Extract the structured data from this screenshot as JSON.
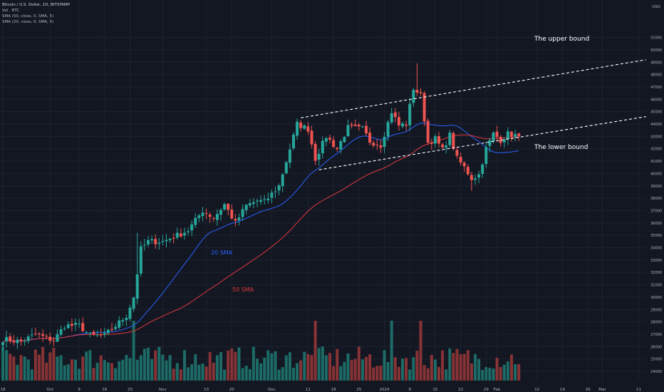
{
  "legend": {
    "title": "Bitcoin / U.S. Dollar, 1D, BITSTAMP",
    "vol": "Vol · BTC",
    "sma50": "SMA (50, close, 0, SMA, 5)",
    "sma20": "SMA (20, close, 0, SMA, 5)"
  },
  "colors": {
    "background": "#131722",
    "grid": "#1e2230",
    "up": "#26a69a",
    "down": "#ef5350",
    "volume_up": "#1f7a72",
    "volume_down": "#9c3838",
    "sma20": "#2962ff",
    "sma50": "#e0393e",
    "text": "#b2b5be",
    "annotation": "#ffffff"
  },
  "chart_data": {
    "type": "candlestick",
    "title": "Bitcoin / U.S. Dollar, 1D, BITSTAMP",
    "currency": "USD",
    "y_axis": {
      "label": "USD",
      "ticks": [
        24000,
        25000,
        26000,
        27000,
        28000,
        29000,
        30000,
        31000,
        32000,
        33000,
        34000,
        35000,
        36000,
        37000,
        38000,
        39000,
        40000,
        41000,
        42000,
        43000,
        44000,
        45000,
        46000,
        47000,
        48000,
        49000,
        50000,
        51000
      ]
    },
    "x_axis": {
      "ticks": [
        {
          "label": "18",
          "day": 0
        },
        {
          "label": "Oct",
          "day": 13
        },
        {
          "label": "9",
          "day": 21
        },
        {
          "label": "16",
          "day": 28
        },
        {
          "label": "23",
          "day": 35
        },
        {
          "label": "Nov",
          "day": 44
        },
        {
          "label": "13",
          "day": 56
        },
        {
          "label": "20",
          "day": 63
        },
        {
          "label": "Dec",
          "day": 74
        },
        {
          "label": "11",
          "day": 84
        },
        {
          "label": "18",
          "day": 91
        },
        {
          "label": "25",
          "day": 98
        },
        {
          "label": "2024",
          "day": 105
        },
        {
          "label": "8",
          "day": 112
        },
        {
          "label": "15",
          "day": 119
        },
        {
          "label": "22",
          "day": 126
        },
        {
          "label": "29",
          "day": 133
        },
        {
          "label": "Feb",
          "day": 136
        },
        {
          "label": "12",
          "day": 147
        },
        {
          "label": "19",
          "day": 154
        },
        {
          "label": "26",
          "day": 161
        },
        {
          "label": "Mar",
          "day": 165
        },
        {
          "label": "11",
          "day": 175
        }
      ]
    },
    "anchors": [
      {
        "day": 0,
        "close": 26600
      },
      {
        "day": 5,
        "close": 26400
      },
      {
        "day": 9,
        "close": 27000
      },
      {
        "day": 14,
        "close": 26500
      },
      {
        "day": 17,
        "close": 27700
      },
      {
        "day": 21,
        "close": 27700
      },
      {
        "day": 24,
        "close": 26900
      },
      {
        "day": 28,
        "close": 26900
      },
      {
        "day": 30,
        "close": 27400
      },
      {
        "day": 34,
        "close": 28500
      },
      {
        "day": 36,
        "close": 30000
      },
      {
        "day": 38,
        "close": 33900
      },
      {
        "day": 40,
        "close": 34500
      },
      {
        "day": 44,
        "close": 34500
      },
      {
        "day": 48,
        "close": 35000
      },
      {
        "day": 51,
        "close": 35400
      },
      {
        "day": 55,
        "close": 37000
      },
      {
        "day": 58,
        "close": 36400
      },
      {
        "day": 61,
        "close": 37500
      },
      {
        "day": 64,
        "close": 36000
      },
      {
        "day": 67,
        "close": 37400
      },
      {
        "day": 70,
        "close": 37800
      },
      {
        "day": 72,
        "close": 37700
      },
      {
        "day": 76,
        "close": 39000
      },
      {
        "day": 79,
        "close": 42000
      },
      {
        "day": 81,
        "close": 44000
      },
      {
        "day": 84,
        "close": 43600
      },
      {
        "day": 86,
        "close": 41200
      },
      {
        "day": 89,
        "close": 43000
      },
      {
        "day": 92,
        "close": 42000
      },
      {
        "day": 95,
        "close": 43700
      },
      {
        "day": 99,
        "close": 43600
      },
      {
        "day": 101,
        "close": 42600
      },
      {
        "day": 104,
        "close": 42300
      },
      {
        "day": 107,
        "close": 45000
      },
      {
        "day": 109,
        "close": 43900
      },
      {
        "day": 111,
        "close": 44000
      },
      {
        "day": 113,
        "close": 46900
      },
      {
        "day": 115,
        "close": 46300
      },
      {
        "day": 117,
        "close": 42500
      },
      {
        "day": 119,
        "close": 42800
      },
      {
        "day": 121,
        "close": 41900
      },
      {
        "day": 123,
        "close": 43100
      },
      {
        "day": 125,
        "close": 41200
      },
      {
        "day": 127,
        "close": 40500
      },
      {
        "day": 129,
        "close": 39600
      },
      {
        "day": 131,
        "close": 39900
      },
      {
        "day": 133,
        "close": 42000
      },
      {
        "day": 135,
        "close": 43200
      },
      {
        "day": 137,
        "close": 42700
      },
      {
        "day": 139,
        "close": 43200
      },
      {
        "day": 141,
        "close": 43100
      },
      {
        "day": 142,
        "close": 43000
      }
    ],
    "series": [
      {
        "name": "20 SMA",
        "type": "sma",
        "period": 20
      },
      {
        "name": "50 SMA",
        "type": "sma",
        "period": 50
      },
      {
        "name": "Vol · BTC",
        "type": "volume"
      }
    ],
    "annotations": [
      {
        "text": "The upper bound",
        "line": {
          "from": {
            "day": 82,
            "price": 44500
          },
          "to": {
            "day": 177,
            "price": 49200
          }
        }
      },
      {
        "text": "The lower bound",
        "line": {
          "from": {
            "day": 87,
            "price": 40300
          },
          "to": {
            "day": 177,
            "price": 44600
          }
        }
      },
      {
        "text": "20 SMA",
        "near": {
          "day": 58,
          "price": 33800
        }
      },
      {
        "text": "50 SMA",
        "near": {
          "day": 64,
          "price": 30700
        }
      }
    ]
  }
}
